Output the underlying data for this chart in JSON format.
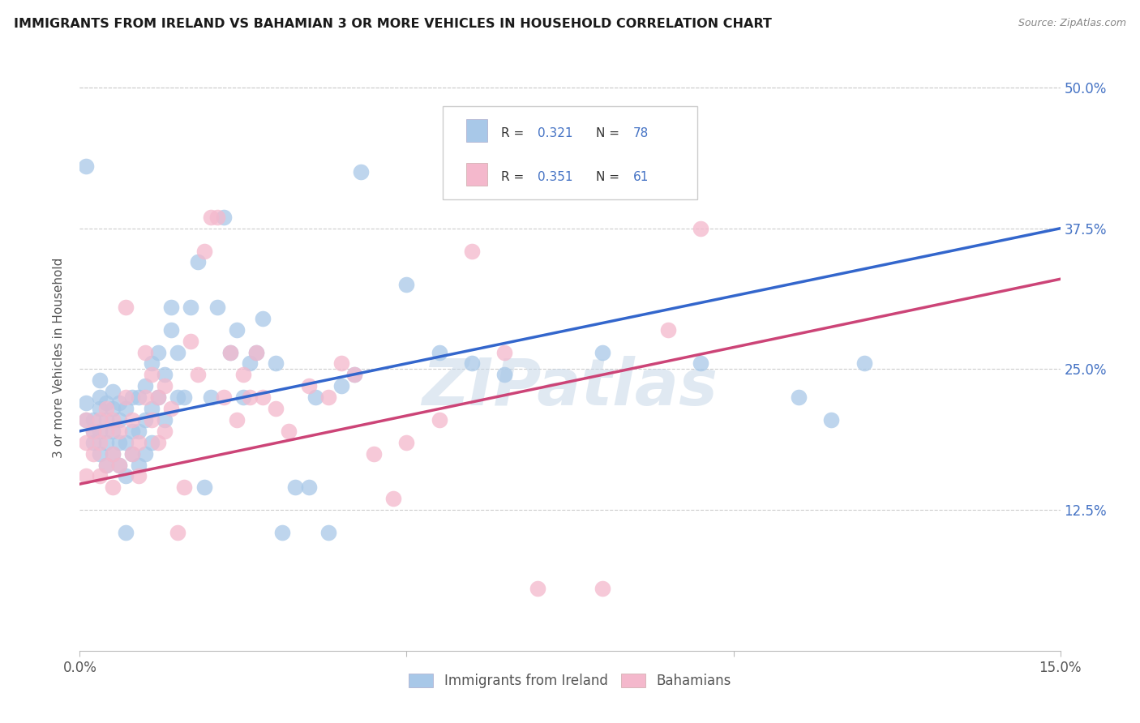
{
  "title": "IMMIGRANTS FROM IRELAND VS BAHAMIAN 3 OR MORE VEHICLES IN HOUSEHOLD CORRELATION CHART",
  "source": "Source: ZipAtlas.com",
  "ylabel": "3 or more Vehicles in Household",
  "xlim": [
    0.0,
    0.15
  ],
  "ylim": [
    0.0,
    0.52
  ],
  "blue_R": 0.321,
  "blue_N": 78,
  "pink_R": 0.351,
  "pink_N": 61,
  "blue_color": "#a8c8e8",
  "pink_color": "#f4b8cc",
  "blue_line_color": "#3366cc",
  "pink_line_color": "#cc4477",
  "watermark": "ZIPatlas",
  "blue_line_x0": 0.0,
  "blue_line_y0": 0.195,
  "blue_line_x1": 0.15,
  "blue_line_y1": 0.375,
  "pink_line_x0": 0.0,
  "pink_line_y0": 0.148,
  "pink_line_x1": 0.15,
  "pink_line_y1": 0.33,
  "blue_scatter_x": [
    0.001,
    0.001,
    0.002,
    0.002,
    0.002,
    0.003,
    0.003,
    0.003,
    0.003,
    0.003,
    0.004,
    0.004,
    0.004,
    0.004,
    0.005,
    0.005,
    0.005,
    0.005,
    0.006,
    0.006,
    0.006,
    0.006,
    0.007,
    0.007,
    0.007,
    0.007,
    0.008,
    0.008,
    0.008,
    0.009,
    0.009,
    0.009,
    0.01,
    0.01,
    0.01,
    0.011,
    0.011,
    0.011,
    0.012,
    0.012,
    0.013,
    0.013,
    0.014,
    0.014,
    0.015,
    0.015,
    0.016,
    0.017,
    0.018,
    0.019,
    0.02,
    0.021,
    0.022,
    0.023,
    0.024,
    0.025,
    0.026,
    0.027,
    0.028,
    0.03,
    0.031,
    0.033,
    0.035,
    0.036,
    0.038,
    0.04,
    0.042,
    0.043,
    0.05,
    0.055,
    0.06,
    0.065,
    0.08,
    0.095,
    0.11,
    0.115,
    0.12,
    0.001
  ],
  "blue_scatter_y": [
    0.205,
    0.22,
    0.185,
    0.195,
    0.205,
    0.175,
    0.195,
    0.215,
    0.225,
    0.24,
    0.165,
    0.185,
    0.205,
    0.22,
    0.175,
    0.195,
    0.215,
    0.23,
    0.165,
    0.185,
    0.205,
    0.22,
    0.105,
    0.155,
    0.185,
    0.215,
    0.175,
    0.195,
    0.225,
    0.165,
    0.195,
    0.225,
    0.175,
    0.205,
    0.235,
    0.185,
    0.215,
    0.255,
    0.225,
    0.265,
    0.205,
    0.245,
    0.285,
    0.305,
    0.225,
    0.265,
    0.225,
    0.305,
    0.345,
    0.145,
    0.225,
    0.305,
    0.385,
    0.265,
    0.285,
    0.225,
    0.255,
    0.265,
    0.295,
    0.255,
    0.105,
    0.145,
    0.145,
    0.225,
    0.105,
    0.235,
    0.245,
    0.425,
    0.325,
    0.265,
    0.255,
    0.245,
    0.265,
    0.255,
    0.225,
    0.205,
    0.255,
    0.43
  ],
  "pink_scatter_x": [
    0.001,
    0.001,
    0.002,
    0.002,
    0.003,
    0.003,
    0.003,
    0.004,
    0.004,
    0.004,
    0.005,
    0.005,
    0.005,
    0.006,
    0.006,
    0.007,
    0.007,
    0.008,
    0.008,
    0.009,
    0.009,
    0.01,
    0.01,
    0.011,
    0.011,
    0.012,
    0.012,
    0.013,
    0.013,
    0.014,
    0.015,
    0.016,
    0.017,
    0.018,
    0.019,
    0.02,
    0.021,
    0.022,
    0.023,
    0.024,
    0.025,
    0.026,
    0.027,
    0.028,
    0.03,
    0.032,
    0.035,
    0.038,
    0.04,
    0.042,
    0.045,
    0.048,
    0.05,
    0.055,
    0.06,
    0.065,
    0.07,
    0.08,
    0.09,
    0.095,
    0.001
  ],
  "pink_scatter_y": [
    0.185,
    0.205,
    0.175,
    0.195,
    0.155,
    0.185,
    0.205,
    0.165,
    0.195,
    0.215,
    0.145,
    0.175,
    0.205,
    0.165,
    0.195,
    0.305,
    0.225,
    0.175,
    0.205,
    0.155,
    0.185,
    0.225,
    0.265,
    0.205,
    0.245,
    0.185,
    0.225,
    0.195,
    0.235,
    0.215,
    0.105,
    0.145,
    0.275,
    0.245,
    0.355,
    0.385,
    0.385,
    0.225,
    0.265,
    0.205,
    0.245,
    0.225,
    0.265,
    0.225,
    0.215,
    0.195,
    0.235,
    0.225,
    0.255,
    0.245,
    0.175,
    0.135,
    0.185,
    0.205,
    0.355,
    0.265,
    0.055,
    0.055,
    0.285,
    0.375,
    0.155
  ]
}
